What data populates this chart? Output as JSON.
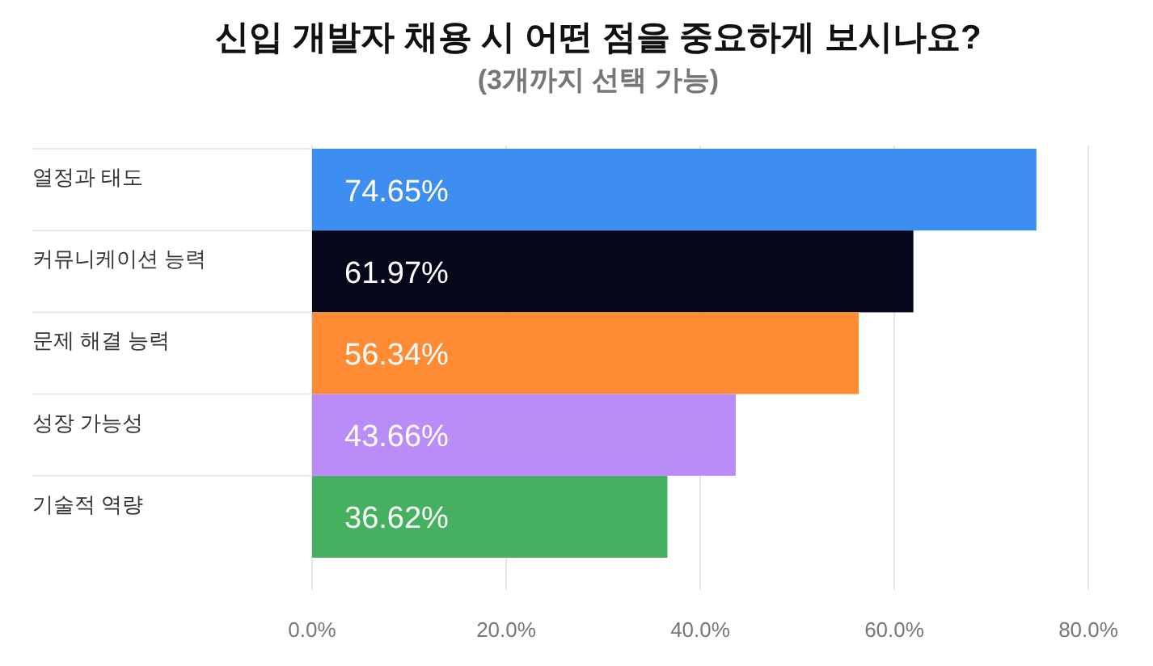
{
  "chart_data": {
    "type": "bar",
    "orientation": "horizontal",
    "title": "신입 개발자 채용 시 어떤 점을 중요하게 보시나요?",
    "subtitle": "(3개까지 선택 가능)",
    "categories": [
      "열정과 태도",
      "커뮤니케이션 능력",
      "문제 해결 능력",
      "성장 가능성",
      "기술적 역량"
    ],
    "values": [
      74.65,
      61.97,
      56.34,
      43.66,
      36.62
    ],
    "colors": [
      "#3d8ef0",
      "#07071c",
      "#ff8c35",
      "#b98cf8",
      "#45b160"
    ],
    "value_labels": [
      "74.65%",
      "61.97%",
      "56.34%",
      "43.66%",
      "36.62%"
    ],
    "xlim": [
      0,
      80
    ],
    "xticks": [
      {
        "value": 0,
        "label": "0.0%"
      },
      {
        "value": 20,
        "label": "20.0%"
      },
      {
        "value": 40,
        "label": "40.0%"
      },
      {
        "value": 60,
        "label": "60.0%"
      },
      {
        "value": 80,
        "label": "80.0%"
      }
    ],
    "grid": "x"
  }
}
